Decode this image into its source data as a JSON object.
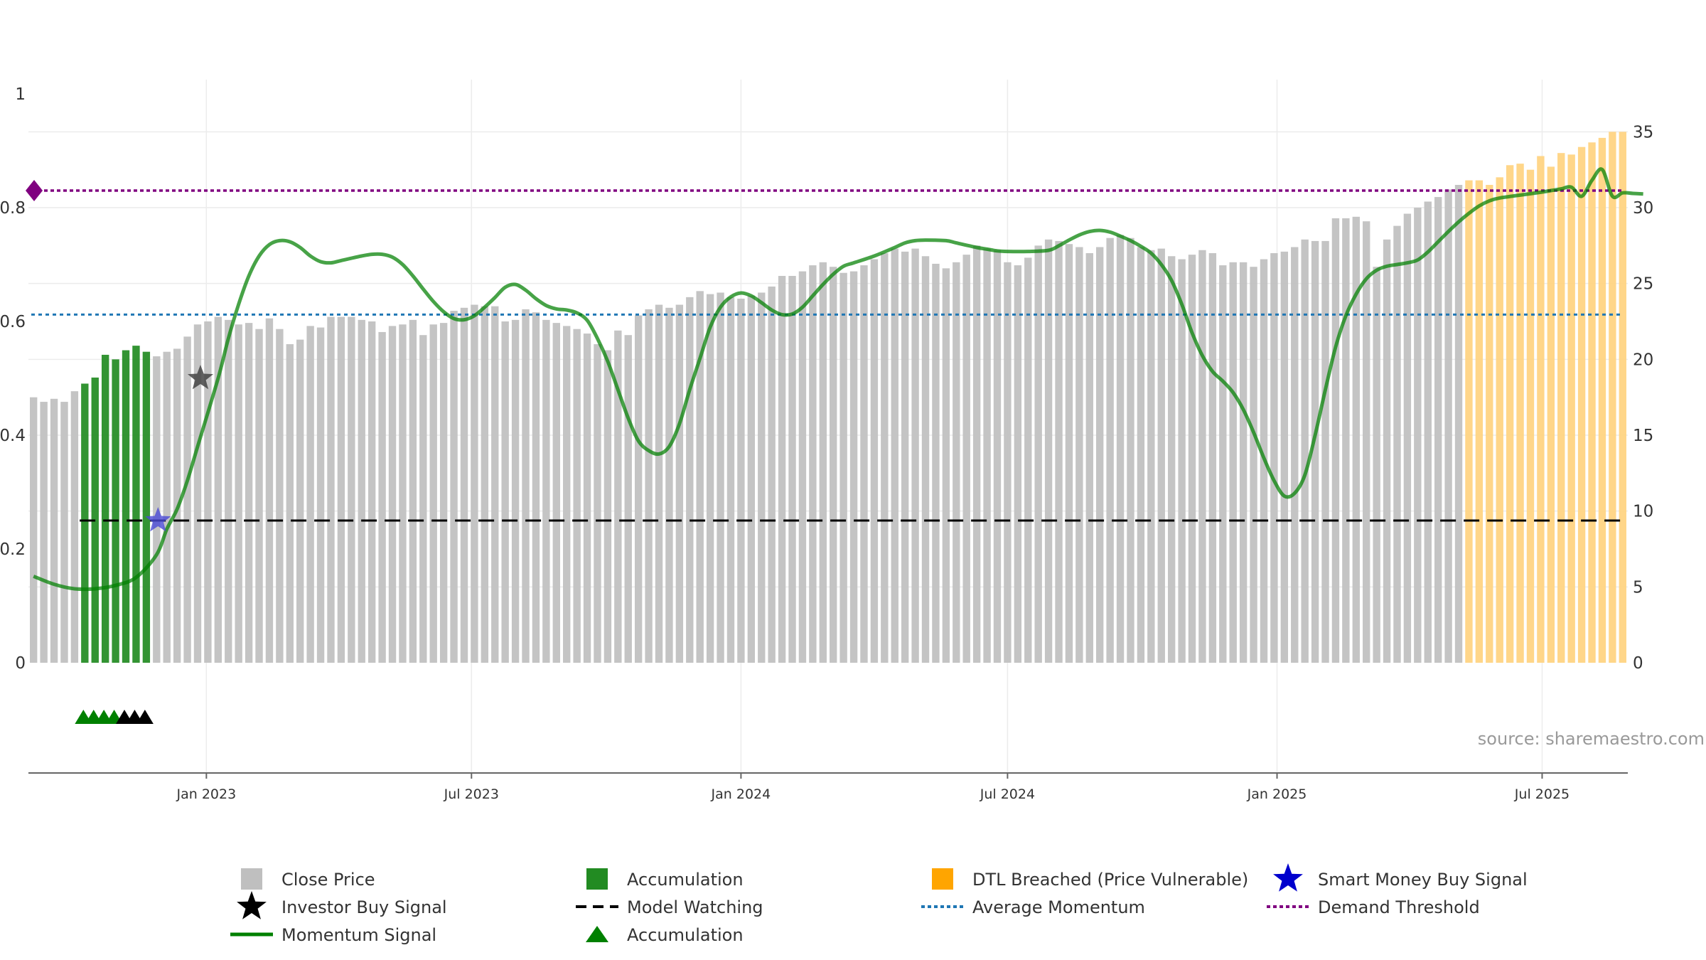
{
  "chart_data": {
    "type": "bar",
    "source_label": "source: sharemaestro.com",
    "left_axis": {
      "range": [
        0,
        1
      ],
      "ticks": [
        "0",
        "0.2",
        "0.4",
        "0.6",
        "0.8",
        "1"
      ],
      "tick_values": [
        0,
        0.2,
        0.4,
        0.6,
        0.8,
        1.0
      ]
    },
    "right_axis": {
      "range": [
        0,
        37.5
      ],
      "ticks": [
        "0",
        "5",
        "10",
        "15",
        "20",
        "25",
        "30",
        "35"
      ],
      "tick_values": [
        0,
        5,
        10,
        15,
        20,
        25,
        30,
        35
      ]
    },
    "x_axis": {
      "start": "2022-09-05",
      "end": "2025-09-15",
      "tick_labels": [
        "Jan 2023",
        "Jul 2023",
        "Jan 2024",
        "Jul 2024",
        "Jan 2025",
        "Jul 2025"
      ],
      "tick_dates": [
        "2023-01-01",
        "2023-07-01",
        "2024-01-01",
        "2024-07-01",
        "2025-01-01",
        "2025-07-01"
      ]
    },
    "week_start": "2022-09-05",
    "close_prices": [
      17.5,
      17.2,
      17.4,
      17.2,
      17.9,
      18.4,
      18.8,
      20.3,
      20.0,
      20.6,
      20.9,
      20.5,
      20.2,
      20.5,
      20.7,
      21.5,
      22.3,
      22.5,
      22.8,
      22.6,
      22.3,
      22.4,
      22.0,
      22.7,
      22.0,
      21.0,
      21.3,
      22.2,
      22.1,
      22.8,
      22.8,
      22.8,
      22.6,
      22.5,
      21.8,
      22.2,
      22.3,
      22.6,
      21.6,
      22.3,
      22.4,
      23.2,
      23.4,
      23.6,
      23.5,
      23.5,
      22.5,
      22.6,
      23.3,
      23.1,
      22.6,
      22.4,
      22.2,
      22.0,
      21.7,
      21.0,
      20.6,
      21.9,
      21.6,
      22.9,
      23.3,
      23.6,
      23.4,
      23.6,
      24.1,
      24.5,
      24.3,
      24.4,
      24.1,
      24.0,
      24.2,
      24.4,
      24.8,
      25.5,
      25.5,
      25.8,
      26.2,
      26.4,
      26.1,
      25.7,
      25.8,
      26.2,
      26.6,
      27.0,
      27.3,
      27.1,
      27.3,
      26.8,
      26.3,
      26.0,
      26.4,
      26.9,
      27.5,
      27.3,
      27.2,
      26.4,
      26.2,
      26.7,
      27.5,
      27.9,
      27.8,
      27.6,
      27.4,
      27.0,
      27.4,
      28.0,
      28.2,
      28.0,
      27.4,
      27.2,
      27.3,
      26.8,
      26.6,
      26.9,
      27.2,
      27.0,
      26.2,
      26.4,
      26.4,
      26.1,
      26.6,
      27.0,
      27.1,
      27.4,
      27.9,
      27.8,
      27.8,
      29.3,
      29.3,
      29.4,
      29.1,
      26.1,
      27.9,
      28.8,
      29.6,
      30.0,
      30.4,
      30.7,
      31.2,
      31.5,
      31.8,
      31.8,
      31.5,
      32.0,
      32.8,
      32.9,
      32.5,
      33.4,
      32.7,
      33.6,
      33.5,
      34.0,
      34.3,
      34.6,
      35.0,
      35.0
    ],
    "close_price_color": "#bfbfbf",
    "accumulation_bar_range": [
      5,
      11
    ],
    "accumulation_bar_color": "#228b22",
    "dtl_bar_range": [
      140,
      157
    ],
    "dtl_bar_color": "#ffd27f",
    "momentum_keypoints": [
      [
        0,
        0.152
      ],
      [
        2,
        0.138
      ],
      [
        4,
        0.13
      ],
      [
        6,
        0.13
      ],
      [
        8,
        0.136
      ],
      [
        10,
        0.15
      ],
      [
        12,
        0.19
      ],
      [
        13,
        0.235
      ],
      [
        14,
        0.27
      ],
      [
        15,
        0.32
      ],
      [
        16,
        0.38
      ],
      [
        18,
        0.5
      ],
      [
        19,
        0.57
      ],
      [
        20,
        0.63
      ],
      [
        21,
        0.68
      ],
      [
        22,
        0.715
      ],
      [
        23,
        0.735
      ],
      [
        24,
        0.742
      ],
      [
        25,
        0.74
      ],
      [
        26,
        0.73
      ],
      [
        27,
        0.715
      ],
      [
        28,
        0.705
      ],
      [
        29,
        0.703
      ],
      [
        30,
        0.707
      ],
      [
        32,
        0.715
      ],
      [
        33,
        0.718
      ],
      [
        34,
        0.718
      ],
      [
        35,
        0.713
      ],
      [
        36,
        0.7
      ],
      [
        37,
        0.68
      ],
      [
        38,
        0.657
      ],
      [
        39,
        0.635
      ],
      [
        40,
        0.617
      ],
      [
        41,
        0.605
      ],
      [
        42,
        0.603
      ],
      [
        43,
        0.61
      ],
      [
        44,
        0.625
      ],
      [
        45,
        0.642
      ],
      [
        46,
        0.66
      ],
      [
        47,
        0.665
      ],
      [
        48,
        0.655
      ],
      [
        49,
        0.64
      ],
      [
        50,
        0.628
      ],
      [
        51,
        0.622
      ],
      [
        52,
        0.62
      ],
      [
        53,
        0.615
      ],
      [
        54,
        0.602
      ],
      [
        55,
        0.57
      ],
      [
        56,
        0.53
      ],
      [
        57,
        0.48
      ],
      [
        58,
        0.43
      ],
      [
        59,
        0.39
      ],
      [
        60,
        0.373
      ],
      [
        61,
        0.367
      ],
      [
        62,
        0.38
      ],
      [
        63,
        0.42
      ],
      [
        64,
        0.48
      ],
      [
        65,
        0.535
      ],
      [
        66,
        0.59
      ],
      [
        67,
        0.625
      ],
      [
        68,
        0.643
      ],
      [
        69,
        0.65
      ],
      [
        70,
        0.645
      ],
      [
        71,
        0.633
      ],
      [
        72,
        0.62
      ],
      [
        73,
        0.612
      ],
      [
        74,
        0.613
      ],
      [
        75,
        0.625
      ],
      [
        76,
        0.645
      ],
      [
        77,
        0.665
      ],
      [
        78,
        0.683
      ],
      [
        79,
        0.697
      ],
      [
        80,
        0.703
      ],
      [
        82,
        0.715
      ],
      [
        84,
        0.73
      ],
      [
        85,
        0.738
      ],
      [
        86,
        0.742
      ],
      [
        87,
        0.743
      ],
      [
        89,
        0.742
      ],
      [
        90,
        0.738
      ],
      [
        92,
        0.73
      ],
      [
        93,
        0.727
      ],
      [
        94,
        0.724
      ],
      [
        95,
        0.723
      ],
      [
        97,
        0.723
      ],
      [
        99,
        0.725
      ],
      [
        100,
        0.733
      ],
      [
        101,
        0.743
      ],
      [
        102,
        0.752
      ],
      [
        103,
        0.758
      ],
      [
        104,
        0.76
      ],
      [
        105,
        0.757
      ],
      [
        106,
        0.75
      ],
      [
        107,
        0.742
      ],
      [
        108,
        0.732
      ],
      [
        109,
        0.72
      ],
      [
        110,
        0.7
      ],
      [
        111,
        0.672
      ],
      [
        112,
        0.63
      ],
      [
        113,
        0.58
      ],
      [
        114,
        0.54
      ],
      [
        115,
        0.512
      ],
      [
        116,
        0.495
      ],
      [
        117,
        0.475
      ],
      [
        118,
        0.445
      ],
      [
        119,
        0.405
      ],
      [
        120,
        0.36
      ],
      [
        121,
        0.32
      ],
      [
        122,
        0.293
      ],
      [
        123,
        0.298
      ],
      [
        124,
        0.33
      ],
      [
        125,
        0.4
      ],
      [
        126,
        0.48
      ],
      [
        127,
        0.555
      ],
      [
        128,
        0.61
      ],
      [
        129,
        0.648
      ],
      [
        130,
        0.675
      ],
      [
        131,
        0.69
      ],
      [
        132,
        0.697
      ],
      [
        133,
        0.7
      ],
      [
        134,
        0.703
      ],
      [
        135,
        0.708
      ],
      [
        136,
        0.722
      ],
      [
        137,
        0.74
      ],
      [
        138,
        0.758
      ],
      [
        139,
        0.775
      ],
      [
        140,
        0.79
      ],
      [
        141,
        0.803
      ],
      [
        142,
        0.812
      ],
      [
        143,
        0.817
      ],
      [
        145,
        0.822
      ],
      [
        147,
        0.827
      ],
      [
        148,
        0.83
      ],
      [
        149,
        0.833
      ],
      [
        150,
        0.836
      ],
      [
        151,
        0.82
      ],
      [
        152,
        0.848
      ],
      [
        153,
        0.867
      ],
      [
        154,
        0.82
      ],
      [
        155,
        0.826
      ],
      [
        156,
        0.825
      ],
      [
        157,
        0.824
      ]
    ],
    "momentum_color": "#008000",
    "average_momentum": {
      "value": 0.612,
      "color": "#1f77b4"
    },
    "demand_threshold": {
      "value": 0.83,
      "color": "#800080"
    },
    "model_watching": {
      "value": 0.25,
      "start_index": 5,
      "color": "#000000"
    },
    "investor_buy_signal": {
      "index": 16,
      "value": 0.5
    },
    "smart_money_buy_signal": {
      "index": 12,
      "value": 0.25
    },
    "accumulation_markers": {
      "green_indices": [
        5,
        6,
        7,
        8
      ],
      "black_indices": [
        9,
        10,
        11
      ]
    },
    "legend": [
      {
        "label": "Close Price",
        "symbol": "square",
        "color": "#bfbfbf"
      },
      {
        "label": "Accumulation",
        "symbol": "square",
        "color": "#228b22"
      },
      {
        "label": "DTL Breached (Price Vulnerable)",
        "symbol": "square",
        "color": "#ffa500"
      },
      {
        "label": "Smart Money Buy Signal",
        "symbol": "star",
        "color": "#0000cd"
      },
      {
        "label": "Investor Buy Signal",
        "symbol": "star",
        "color": "#000000"
      },
      {
        "label": "Model Watching",
        "symbol": "dash",
        "color": "#000000"
      },
      {
        "label": "Average Momentum",
        "symbol": "dot",
        "color": "#1f77b4"
      },
      {
        "label": "Demand Threshold",
        "symbol": "dot",
        "color": "#800080"
      },
      {
        "label": "Momentum Signal",
        "symbol": "line",
        "color": "#008000"
      },
      {
        "label": "Accumulation",
        "symbol": "triangle",
        "color": "#008000"
      }
    ]
  }
}
